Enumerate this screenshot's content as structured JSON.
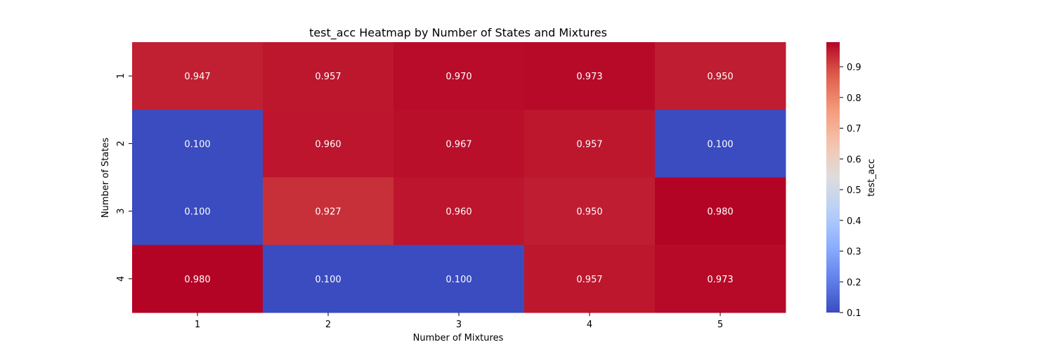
{
  "chart_data": {
    "type": "heatmap",
    "title": "test_acc Heatmap by Number of States and Mixtures",
    "xlabel": "Number of Mixtures",
    "ylabel": "Number of States",
    "x_categories": [
      "1",
      "2",
      "3",
      "4",
      "5"
    ],
    "y_categories": [
      "1",
      "2",
      "3",
      "4"
    ],
    "values": [
      [
        0.947,
        0.957,
        0.97,
        0.973,
        0.95
      ],
      [
        0.1,
        0.96,
        0.967,
        0.957,
        0.1
      ],
      [
        0.1,
        0.927,
        0.96,
        0.95,
        0.98
      ],
      [
        0.98,
        0.1,
        0.1,
        0.957,
        0.973
      ]
    ],
    "cell_labels": [
      [
        "0.947",
        "0.957",
        "0.970",
        "0.973",
        "0.950"
      ],
      [
        "0.100",
        "0.960",
        "0.967",
        "0.957",
        "0.100"
      ],
      [
        "0.100",
        "0.927",
        "0.960",
        "0.950",
        "0.980"
      ],
      [
        "0.980",
        "0.100",
        "0.100",
        "0.957",
        "0.973"
      ]
    ],
    "colormap": "coolwarm",
    "vmin": 0.1,
    "vmax": 0.98,
    "colorbar": {
      "label": "test_acc",
      "ticks": [
        "0.1",
        "0.2",
        "0.3",
        "0.4",
        "0.5",
        "0.6",
        "0.7",
        "0.8",
        "0.9"
      ]
    }
  }
}
